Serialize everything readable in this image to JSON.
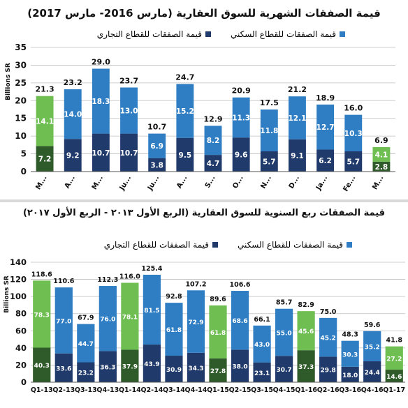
{
  "colors": {
    "residential": "#2f7ec4",
    "commercial": "#1f3a6b",
    "highlight_residential": "#6fbe52",
    "highlight_commercial": "#2f5a2a",
    "grid": "#bfbfbf",
    "label_dark": "#111111",
    "label_light": "#ffffff"
  },
  "top": {
    "title": "قيمة الصفقات الشهرية للسوق العقارية (مارس 2016- مارس 2017)",
    "legend_residential": "قيمة الصفقات للقطاع السكني",
    "legend_commercial": "قيمة الصفقات للقطاع التجاري"
  },
  "bottom": {
    "title": "قيمة الصفقات ربع السنوية للسوق العقارية (الربع الأول ٢٠١٣ - الربع الأول ٢٠١٧)",
    "legend_residential": "قيمة الصفقات للقطاع السكني",
    "legend_commercial": "قيمة الصفقات للقطاع التجاري"
  },
  "chart_data": [
    {
      "type": "bar",
      "stacked": true,
      "title": "قيمة الصفقات الشهرية للسوق العقارية (مارس 2016- مارس 2017)",
      "ylabel": "Billions SR",
      "ylim": [
        0,
        35
      ],
      "yticks": [
        0,
        5,
        10,
        15,
        20,
        25,
        30,
        35
      ],
      "grid": true,
      "legend_position": "top",
      "categories": [
        "M...",
        "A...",
        "M...",
        "Ju...",
        "Ju...",
        "A...",
        "S...",
        "O...",
        "N...",
        "D...",
        "Ja...",
        "Fe...",
        "M..."
      ],
      "highlighted": [
        0,
        12
      ],
      "series": [
        {
          "name": "قيمة الصفقات للقطاع التجاري",
          "values": [
            7.2,
            9.2,
            10.7,
            10.7,
            3.8,
            9.5,
            4.7,
            9.6,
            5.7,
            9.1,
            6.2,
            5.7,
            2.8
          ]
        },
        {
          "name": "قيمة الصفقات للقطاع السكني",
          "values": [
            14.1,
            14.0,
            18.3,
            13.0,
            6.9,
            15.2,
            8.2,
            11.3,
            11.8,
            12.1,
            12.7,
            10.3,
            4.1
          ]
        }
      ],
      "totals": [
        21.3,
        23.2,
        29.0,
        23.7,
        10.7,
        24.7,
        12.9,
        20.9,
        17.5,
        21.2,
        18.9,
        16.0,
        6.9
      ]
    },
    {
      "type": "bar",
      "stacked": true,
      "title": "قيمة الصفقات ربع السنوية للسوق العقارية (الربع الأول ٢٠١٣ - الربع الأول ٢٠١٧)",
      "ylabel": "Billions SR",
      "ylim": [
        0,
        140
      ],
      "yticks": [
        0,
        20,
        40,
        60,
        80,
        100,
        120,
        140
      ],
      "grid": true,
      "legend_position": "top",
      "categories": [
        "Q1-13",
        "Q2-13",
        "Q3-13",
        "Q4-13",
        "Q1-14",
        "Q2-14",
        "Q3-14",
        "Q4-14",
        "Q1-15",
        "Q2-15",
        "Q3-15",
        "Q4-15",
        "Q1-16",
        "Q2-16",
        "Q3-16",
        "Q4-16",
        "Q1-17"
      ],
      "highlighted": [
        0,
        4,
        8,
        12,
        16
      ],
      "series": [
        {
          "name": "قيمة الصفقات للقطاع التجاري",
          "values": [
            40.3,
            33.6,
            23.2,
            36.3,
            37.9,
            43.9,
            30.9,
            34.3,
            27.8,
            38.0,
            23.1,
            30.7,
            37.3,
            29.8,
            18.0,
            24.4,
            14.6
          ]
        },
        {
          "name": "قيمة الصفقات للقطاع السكني",
          "values": [
            78.3,
            77.0,
            44.7,
            76.0,
            78.1,
            81.5,
            61.8,
            72.9,
            61.8,
            68.6,
            43.0,
            55.0,
            45.6,
            45.2,
            30.3,
            35.2,
            27.2
          ]
        }
      ],
      "totals": [
        118.6,
        110.6,
        67.9,
        112.3,
        116.0,
        125.4,
        92.8,
        107.2,
        89.6,
        106.6,
        66.1,
        85.7,
        82.9,
        75.0,
        48.3,
        59.6,
        41.8
      ]
    }
  ]
}
